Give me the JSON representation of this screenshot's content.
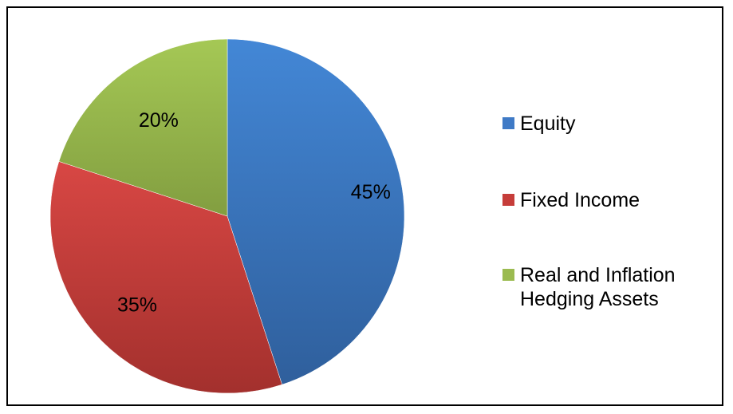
{
  "chart_data": {
    "type": "pie",
    "slices": [
      {
        "label": "Equity",
        "value": 45,
        "display": "45%",
        "color": "#3f7ac6"
      },
      {
        "label": "Fixed Income",
        "value": 35,
        "display": "35%",
        "color": "#c63d3a"
      },
      {
        "label": "Real and Inflation Hedging Assets",
        "value": 20,
        "display": "20%",
        "color": "#9bbb50"
      }
    ],
    "title": "",
    "legend_position": "right",
    "start_angle": "12 o'clock",
    "direction": "clockwise"
  }
}
